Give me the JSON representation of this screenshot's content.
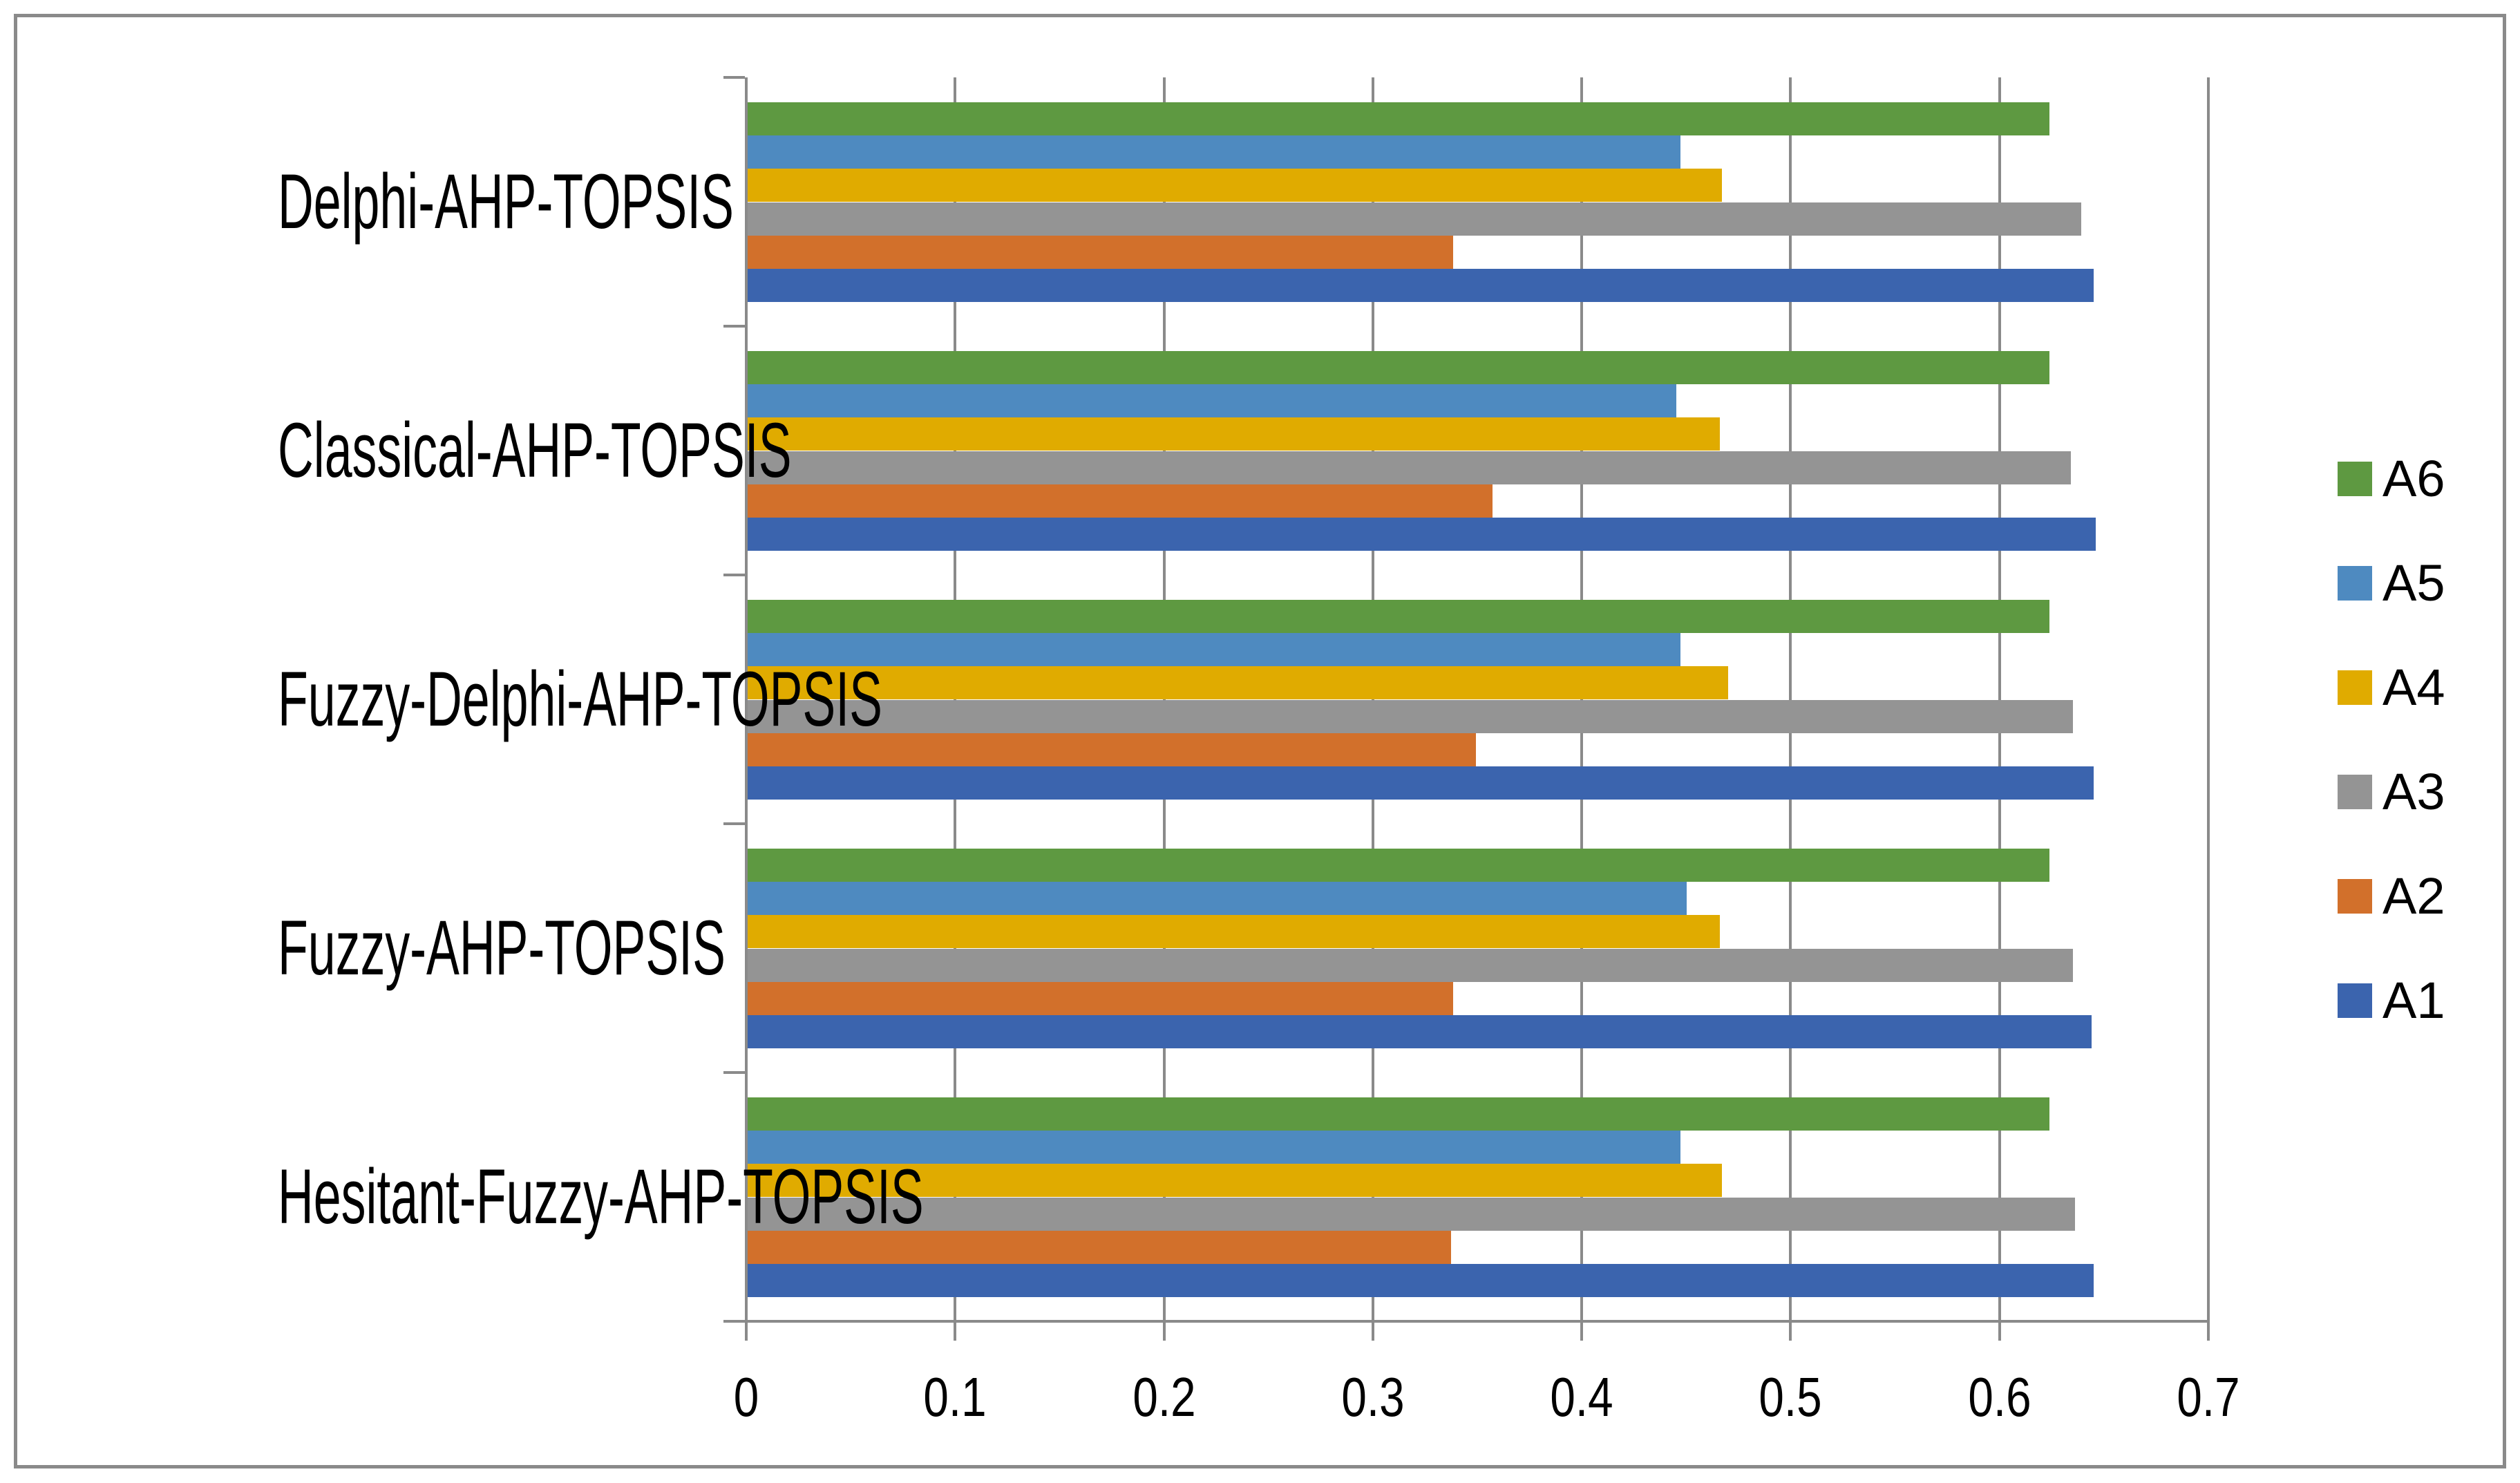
{
  "figure": {
    "frame_color": "#8a8a8a",
    "background": "#ffffff",
    "grid_color": "#8a8a8a",
    "axis_color": "#8a8a8a",
    "text_color": "#000000"
  },
  "chart_data": {
    "type": "bar",
    "orientation": "horizontal",
    "title": "",
    "xlabel": "",
    "ylabel": "",
    "grid": true,
    "categories": [
      "Delphi-AHP-TOPSIS",
      "Classical-AHP-TOPSIS",
      "Fuzzy-Delphi-AHP-TOPSIS",
      "Fuzzy-AHP-TOPSIS",
      "Hesitant-Fuzzy-AHP-TOPSIS"
    ],
    "series": [
      {
        "name": "A1",
        "color": "#3b64ae",
        "values": [
          0.645,
          0.646,
          0.645,
          0.644,
          0.645
        ]
      },
      {
        "name": "A2",
        "color": "#d2702b",
        "values": [
          0.338,
          0.357,
          0.349,
          0.338,
          0.337
        ]
      },
      {
        "name": "A3",
        "color": "#949494",
        "values": [
          0.639,
          0.634,
          0.635,
          0.635,
          0.636
        ]
      },
      {
        "name": "A4",
        "color": "#e0ab00",
        "values": [
          0.467,
          0.466,
          0.47,
          0.466,
          0.467
        ]
      },
      {
        "name": "A5",
        "color": "#4e8ac0",
        "values": [
          0.447,
          0.445,
          0.447,
          0.45,
          0.447
        ]
      },
      {
        "name": "A6",
        "color": "#5e9941",
        "values": [
          0.624,
          0.624,
          0.624,
          0.624,
          0.624
        ]
      }
    ],
    "bar_order_top_to_bottom": [
      "A6",
      "A5",
      "A4",
      "A3",
      "A2",
      "A1"
    ],
    "x_axis": {
      "min": 0,
      "max": 0.7,
      "step": 0.1,
      "tick_labels": [
        "0",
        "0.1",
        "0.2",
        "0.3",
        "0.4",
        "0.5",
        "0.6",
        "0.7"
      ]
    },
    "legend": {
      "position": "right",
      "entries": [
        "A6",
        "A5",
        "A4",
        "A3",
        "A2",
        "A1"
      ]
    }
  }
}
